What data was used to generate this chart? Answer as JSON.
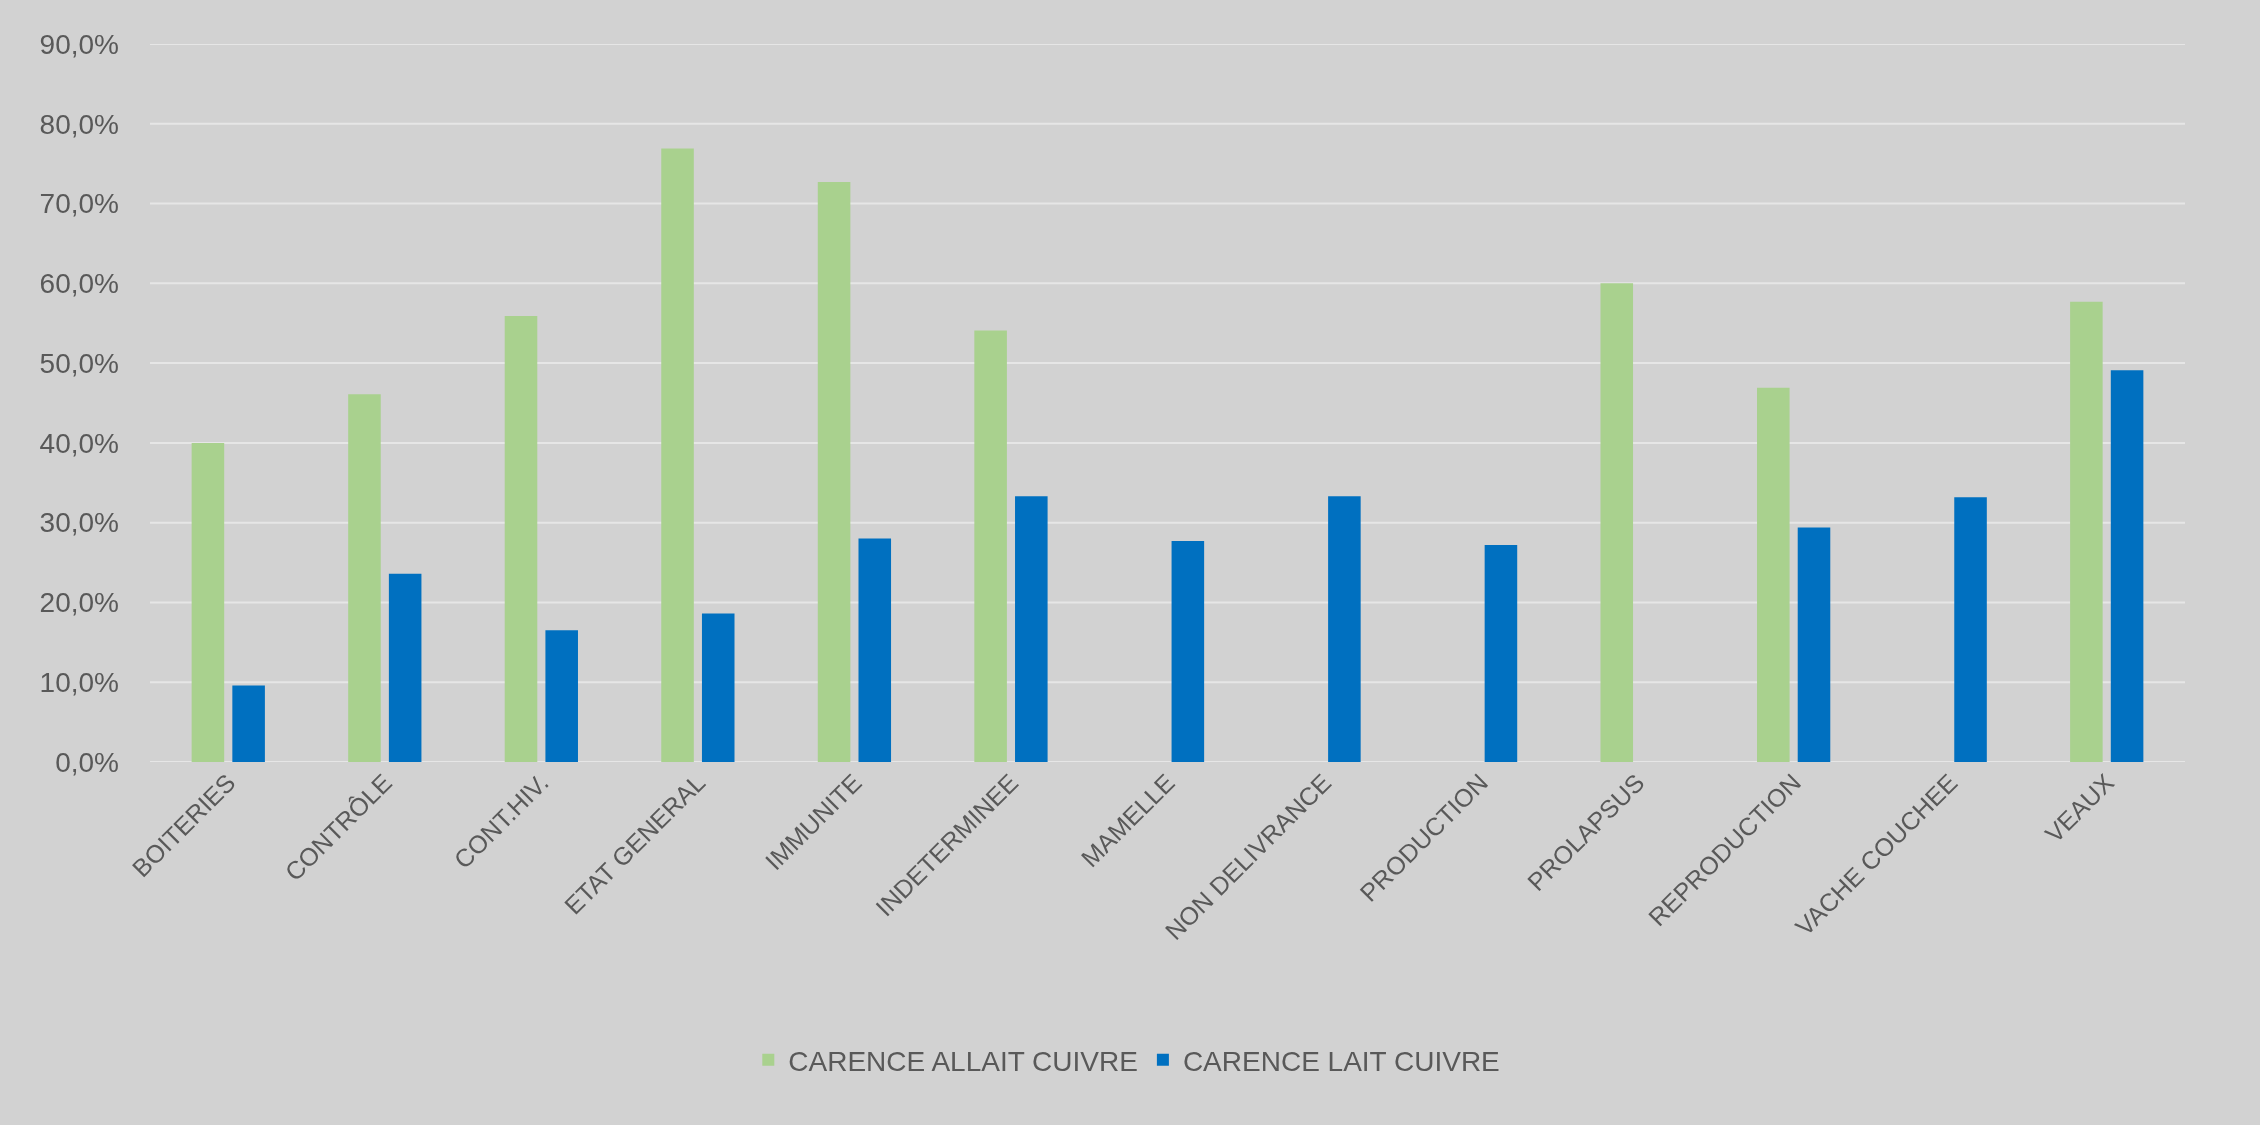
{
  "chart_data": {
    "type": "bar",
    "categories": [
      "BOITERIES",
      "CONTRÔLE",
      "CONT.HIV.",
      "ETAT GENERAL",
      "IMMUNITE",
      "INDETERMINEE",
      "MAMELLE",
      "NON DELIVRANCE",
      "PRODUCTION",
      "PROLAPSUS",
      "REPRODUCTION",
      "VACHE COUCHEE",
      "VEAUX"
    ],
    "series": [
      {
        "name": "CARENCE ALLAIT CUIVRE",
        "color": "#a9d18e",
        "values": [
          40.0,
          46.1,
          55.9,
          76.9,
          72.7,
          54.1,
          null,
          null,
          null,
          60.0,
          46.9,
          null,
          57.7
        ]
      },
      {
        "name": "CARENCE LAIT CUIVRE",
        "color": "#0070c0",
        "values": [
          9.6,
          23.6,
          16.5,
          18.6,
          28.0,
          33.3,
          27.7,
          33.3,
          27.2,
          null,
          29.4,
          33.2,
          49.1
        ]
      }
    ],
    "ylim": [
      0,
      90
    ],
    "yticks": [
      {
        "value": 0,
        "label": "0,0%"
      },
      {
        "value": 10,
        "label": "10,0%"
      },
      {
        "value": 20,
        "label": "20,0%"
      },
      {
        "value": 30,
        "label": "30,0%"
      },
      {
        "value": 40,
        "label": "40,0%"
      },
      {
        "value": 50,
        "label": "50,0%"
      },
      {
        "value": 60,
        "label": "60,0%"
      },
      {
        "value": 70,
        "label": "70,0%"
      },
      {
        "value": 80,
        "label": "80,0%"
      },
      {
        "value": 90,
        "label": "90,0%"
      }
    ],
    "grid": "y",
    "legend": "bottom"
  }
}
